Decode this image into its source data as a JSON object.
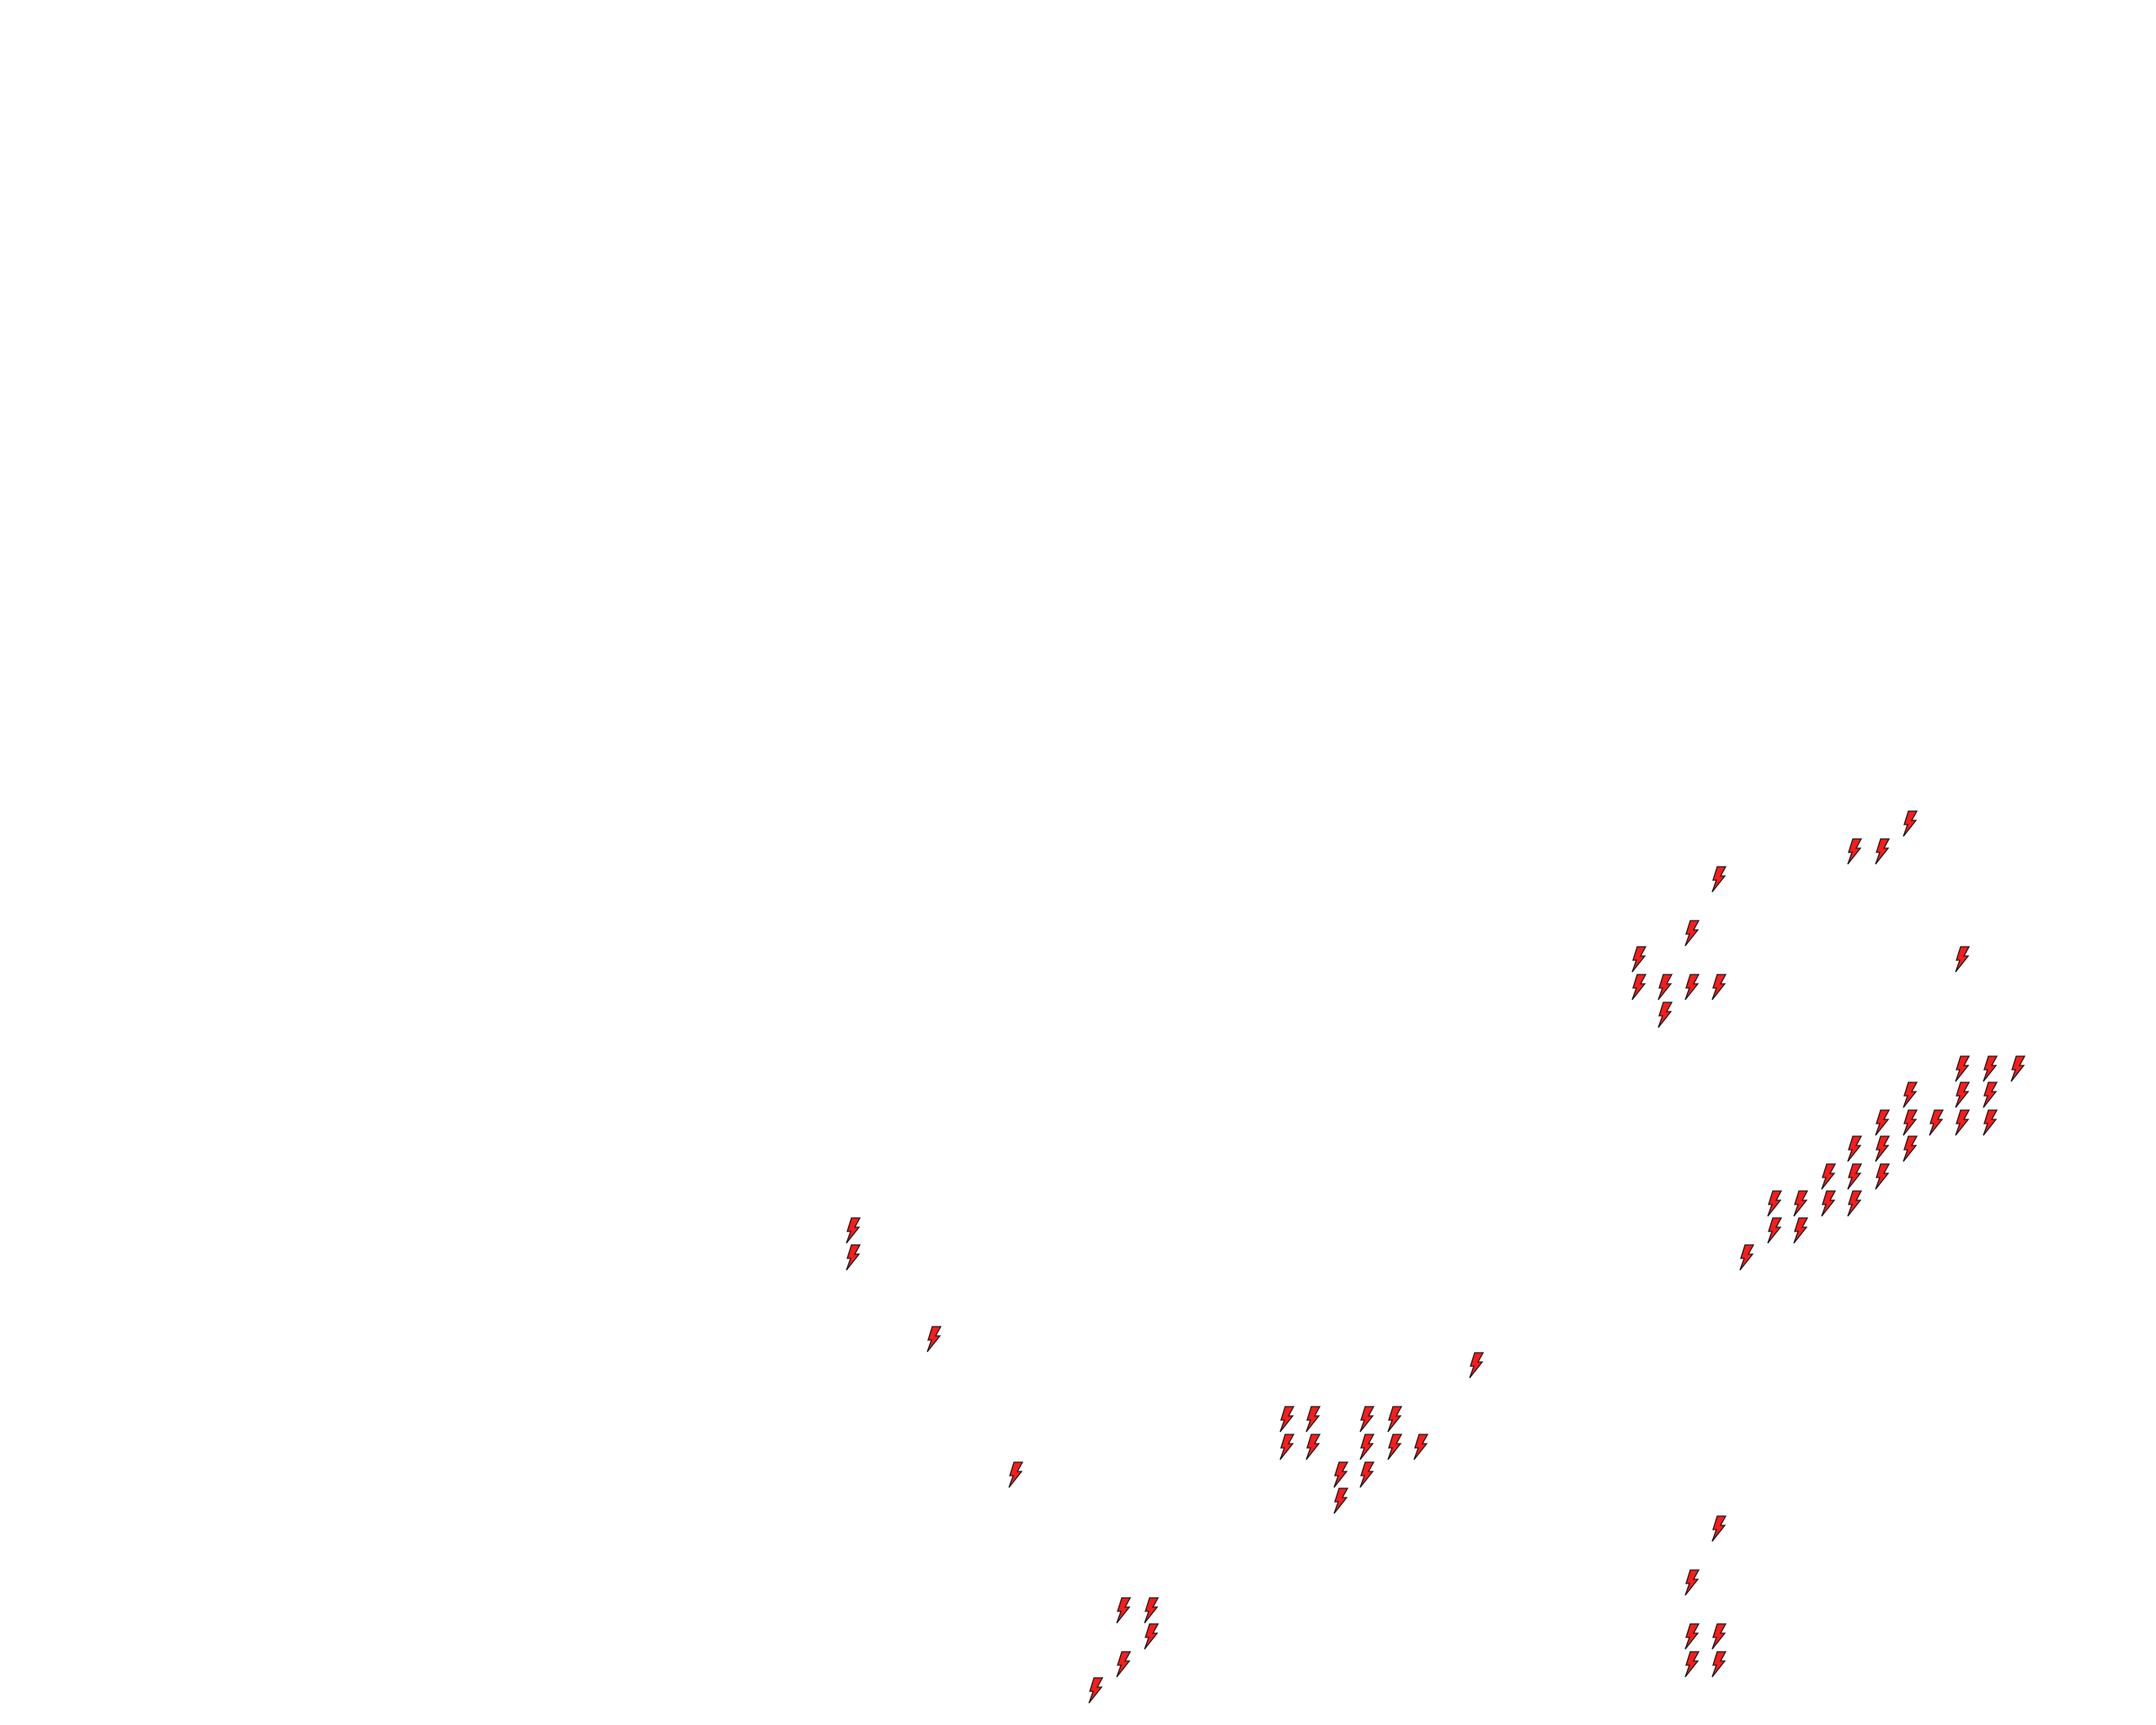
{
  "map": {
    "marker_icon": "lightning-bolt-icon",
    "marker_fill": "#ff1a1a",
    "marker_stroke": "#1a1a1a",
    "background": "#ffffff"
  }
}
